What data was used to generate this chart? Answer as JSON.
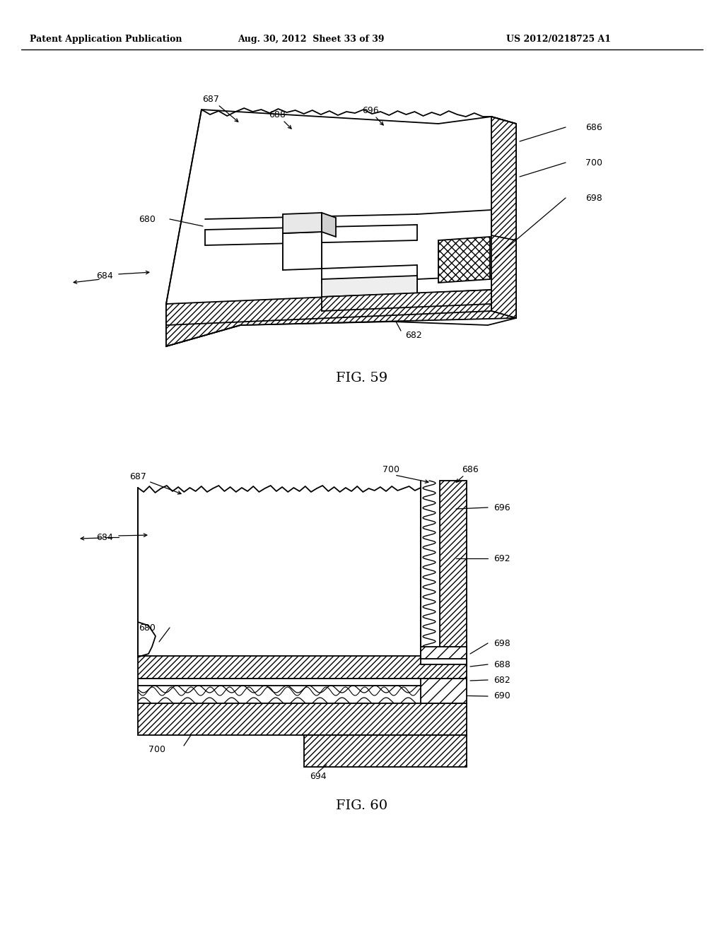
{
  "bg_color": "#ffffff",
  "header_left": "Patent Application Publication",
  "header_mid": "Aug. 30, 2012  Sheet 33 of 39",
  "header_right": "US 2012/0218725 A1",
  "fig59_caption": "FIG. 59",
  "fig60_caption": "FIG. 60"
}
